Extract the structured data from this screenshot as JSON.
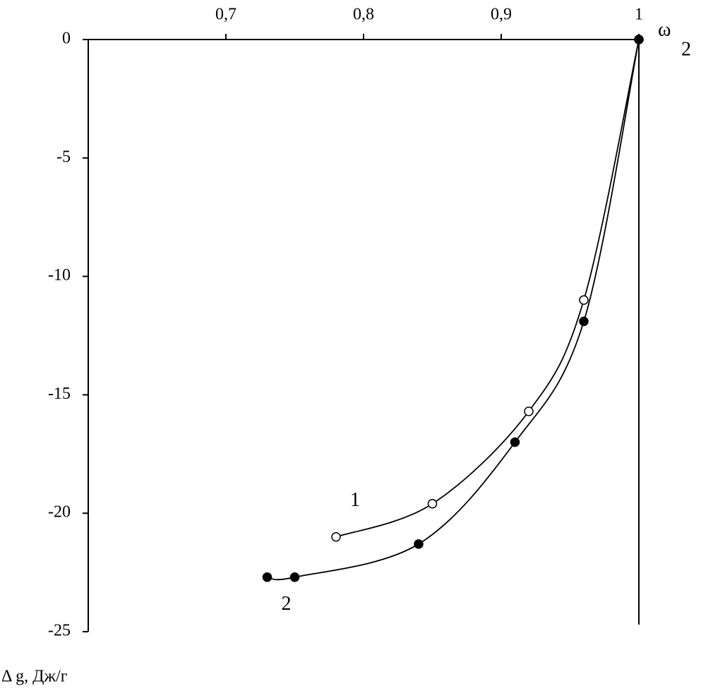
{
  "chart_data": {
    "type": "line",
    "x_label": "ω",
    "x_label_sub": "2",
    "y_label": "Δ g, Дж/г",
    "xlim": [
      0.6,
      1
    ],
    "xticks": [
      {
        "value": 0.7,
        "label": "0,7"
      },
      {
        "value": 0.8,
        "label": "0,8"
      },
      {
        "value": 0.9,
        "label": "0,9"
      },
      1
    ],
    "ylim": [
      -25,
      0
    ],
    "yticks": [
      0,
      -5,
      -10,
      -15,
      -20,
      -25
    ],
    "series": [
      {
        "name": "1",
        "color": "#000000",
        "marker": "open",
        "x": [
          0.78,
          0.85,
          0.92,
          0.96,
          1
        ],
        "values": [
          -21.0,
          -19.6,
          -15.7,
          -11.0,
          0
        ]
      },
      {
        "name": "2",
        "color": "#000000",
        "marker": "filled",
        "x": [
          0.73,
          0.75,
          0.84,
          0.91,
          0.96,
          1
        ],
        "values": [
          -22.7,
          -22.7,
          -21.3,
          -17.0,
          -11.9,
          0
        ]
      }
    ]
  }
}
